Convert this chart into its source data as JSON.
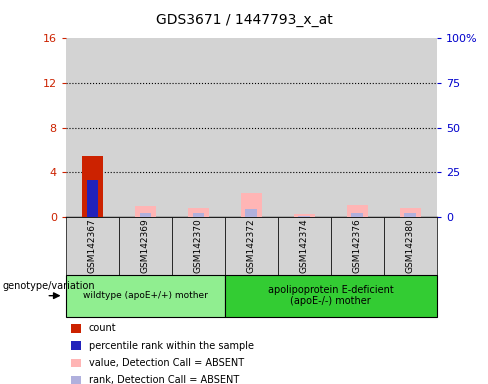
{
  "title": "GDS3671 / 1447793_x_at",
  "samples": [
    "GSM142367",
    "GSM142369",
    "GSM142370",
    "GSM142372",
    "GSM142374",
    "GSM142376",
    "GSM142380"
  ],
  "count_values": [
    5.5,
    0,
    0,
    0,
    0,
    0,
    0
  ],
  "percentile_values": [
    3.3,
    0,
    0,
    0,
    0,
    0,
    0
  ],
  "value_absent": [
    0,
    6.0,
    5.0,
    13.5,
    1.5,
    6.5,
    5.0
  ],
  "rank_absent": [
    0,
    2.0,
    2.0,
    4.2,
    0.6,
    2.0,
    2.0
  ],
  "group1_n": 3,
  "group2_n": 4,
  "group1_label": "wildtype (apoE+/+) mother",
  "group2_label": "apolipoprotein E-deficient\n(apoE-/-) mother",
  "group1_color": "#90ee90",
  "group2_color": "#33cc33",
  "left_ylim": [
    0,
    16
  ],
  "right_ylim": [
    0,
    100
  ],
  "left_yticks": [
    0,
    4,
    8,
    12,
    16
  ],
  "right_yticks": [
    0,
    25,
    50,
    75,
    100
  ],
  "right_yticklabels": [
    "0",
    "25",
    "50",
    "75",
    "100%"
  ],
  "left_color": "#cc2200",
  "right_color": "#0000cc",
  "bar_width": 0.4,
  "col_bg_color": "#d3d3d3",
  "plot_bg": "#ffffff",
  "legend_items": [
    {
      "label": "count",
      "color": "#cc2200"
    },
    {
      "label": "percentile rank within the sample",
      "color": "#2222bb"
    },
    {
      "label": "value, Detection Call = ABSENT",
      "color": "#ffb5b5"
    },
    {
      "label": "rank, Detection Call = ABSENT",
      "color": "#b0b0dd"
    }
  ]
}
